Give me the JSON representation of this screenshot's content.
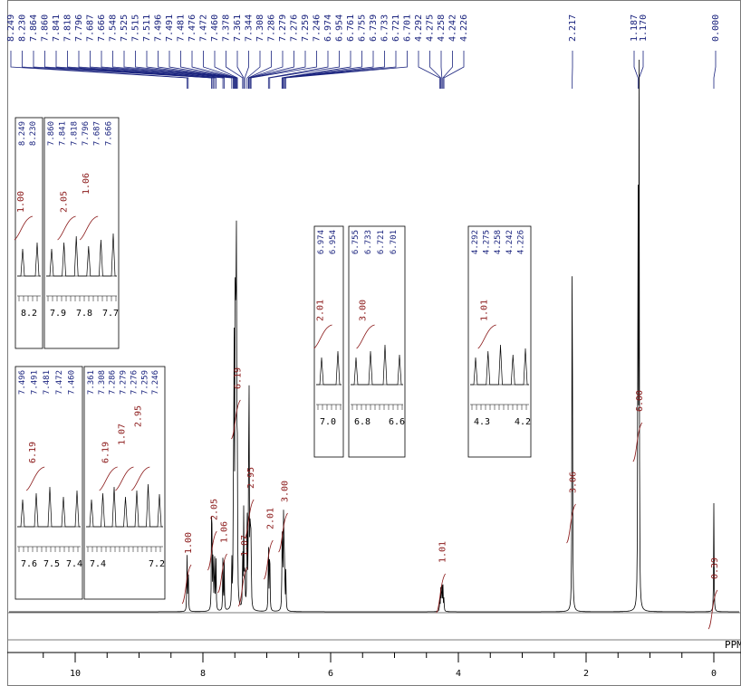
{
  "chart_data": {
    "type": "line",
    "title": "",
    "xlabel": "PPM",
    "ylabel": "",
    "xlim": [
      11,
      -0.4
    ],
    "x_ticks": [
      "10",
      "8",
      "6",
      "4",
      "2",
      "0"
    ],
    "x_tick_values": [
      10,
      8,
      6,
      4,
      2,
      0
    ],
    "peak_labels": [
      "8.249",
      "8.230",
      "7.864",
      "7.860",
      "7.841",
      "7.818",
      "7.796",
      "7.687",
      "7.666",
      "7.548",
      "7.525",
      "7.515",
      "7.511",
      "7.496",
      "7.491",
      "7.481",
      "7.476",
      "7.472",
      "7.460",
      "7.378",
      "7.361",
      "7.344",
      "7.308",
      "7.286",
      "7.279",
      "7.276",
      "7.259",
      "7.246",
      "6.974",
      "6.954",
      "6.761",
      "6.755",
      "6.739",
      "6.733",
      "6.721",
      "6.701",
      "4.292",
      "4.275",
      "4.258",
      "4.242",
      "4.226",
      "2.217",
      "1.187",
      "1.170",
      "0.000"
    ],
    "peak_positions": [
      8.249,
      8.23,
      7.864,
      7.86,
      7.841,
      7.818,
      7.796,
      7.687,
      7.666,
      7.548,
      7.525,
      7.515,
      7.511,
      7.496,
      7.491,
      7.481,
      7.476,
      7.472,
      7.46,
      7.378,
      7.361,
      7.344,
      7.308,
      7.286,
      7.279,
      7.276,
      7.259,
      7.246,
      6.974,
      6.954,
      6.761,
      6.755,
      6.739,
      6.733,
      6.721,
      6.701,
      4.292,
      4.275,
      4.258,
      4.242,
      4.226,
      2.217,
      1.187,
      1.17,
      0.0
    ],
    "integrals": [
      {
        "label": "1.00",
        "x": 8.24
      },
      {
        "label": "2.05",
        "x": 7.84
      },
      {
        "label": "1.06",
        "x": 7.68
      },
      {
        "label": "6.19",
        "x": 7.47
      },
      {
        "label": "1.07",
        "x": 7.36
      },
      {
        "label": "2.95",
        "x": 7.26
      },
      {
        "label": "2.01",
        "x": 6.96
      },
      {
        "label": "3.00",
        "x": 6.73
      },
      {
        "label": "1.01",
        "x": 4.26
      },
      {
        "label": "3.06",
        "x": 2.22
      },
      {
        "label": "6.00",
        "x": 1.18
      },
      {
        "label": "0.39",
        "x": 0.0
      }
    ],
    "insets": [
      {
        "peaks": [
          "8.249",
          "8.230"
        ],
        "integrals": [
          "1.00"
        ],
        "ticks": [
          "8.2"
        ]
      },
      {
        "peaks": [
          "7.860",
          "7.841",
          "7.818",
          "7.796",
          "7.687",
          "7.666"
        ],
        "integrals": [
          "2.05",
          "1.06"
        ],
        "ticks": [
          "7.9",
          "7.8",
          "7.7"
        ]
      },
      {
        "peaks": [
          "7.496",
          "7.491",
          "7.481",
          "7.472",
          "7.460"
        ],
        "integrals": [
          "6.19"
        ],
        "ticks": [
          "7.6",
          "7.5",
          "7.4"
        ]
      },
      {
        "peaks": [
          "7.361",
          "7.308",
          "7.286",
          "7.279",
          "7.276",
          "7.259",
          "7.246"
        ],
        "integrals": [
          "6.19",
          "1.07",
          "2.95"
        ],
        "ticks": [
          "7.4",
          "7.2"
        ]
      },
      {
        "peaks": [
          "6.974",
          "6.954"
        ],
        "integrals": [
          "2.01"
        ],
        "ticks": [
          "7.0"
        ]
      },
      {
        "peaks": [
          "6.755",
          "6.733",
          "6.721",
          "6.701"
        ],
        "integrals": [
          "3.00"
        ],
        "ticks": [
          "6.8",
          "6.6"
        ]
      },
      {
        "peaks": [
          "4.292",
          "4.275",
          "4.258",
          "4.242",
          "4.226"
        ],
        "integrals": [
          "1.01"
        ],
        "ticks": [
          "4.3",
          "4.2"
        ]
      }
    ]
  },
  "colors": {
    "spectrum": "#000000",
    "labels": "#1a237e",
    "integral": "#8b1a1a",
    "frame": "#7a7a7a"
  }
}
